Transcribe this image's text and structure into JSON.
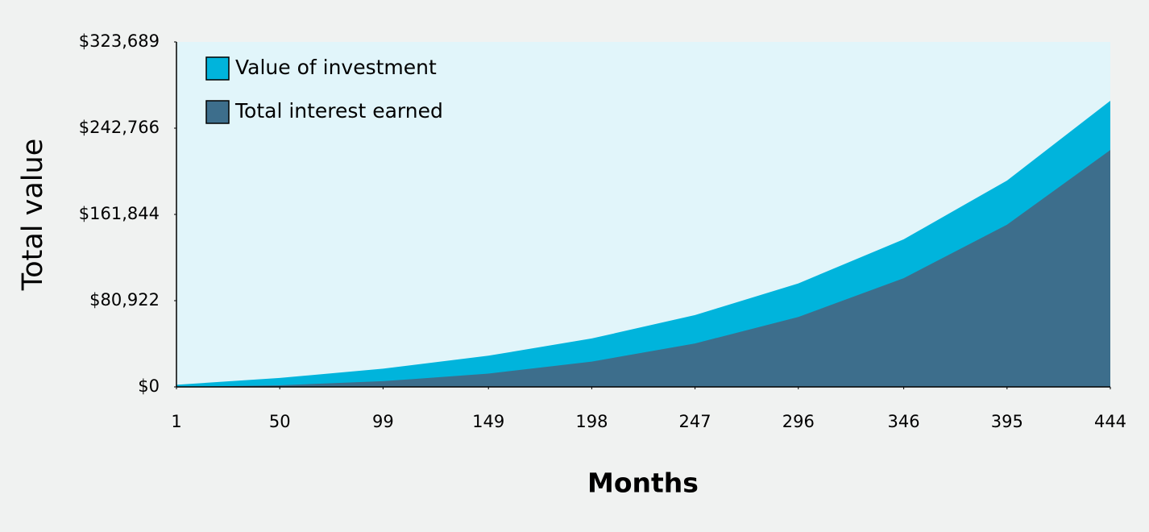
{
  "chart_data": {
    "type": "area",
    "x_label": "Months",
    "y_label": "Total value",
    "x": [
      1,
      50,
      99,
      149,
      198,
      247,
      296,
      346,
      395,
      444
    ],
    "series": [
      {
        "name": "Value of investment",
        "color": "#00b4dc",
        "values": [
          2000,
          8426,
          17156,
          29270,
          45434,
          67376,
          97130,
          138494,
          193646,
          268508
        ]
      },
      {
        "name": "Total interest earned",
        "color": "#3d6e8c",
        "values": [
          0,
          1526,
          5356,
          12470,
          23734,
          40776,
          65630,
          101994,
          152246,
          222208
        ]
      }
    ],
    "xlim": [
      1,
      444
    ],
    "xticks": [
      1,
      50,
      99,
      149,
      198,
      247,
      296,
      346,
      395,
      444
    ],
    "ylim": [
      0,
      323689
    ],
    "yticks": [
      {
        "value": 0,
        "label": "$0"
      },
      {
        "value": 80922,
        "label": "$80,922"
      },
      {
        "value": 161844,
        "label": "$161,844"
      },
      {
        "value": 242766,
        "label": "$242,766"
      },
      {
        "value": 323689,
        "label": "$323,689"
      }
    ],
    "plot_background": "#e1f5fa",
    "legend_position": "upper left",
    "grid": false
  }
}
